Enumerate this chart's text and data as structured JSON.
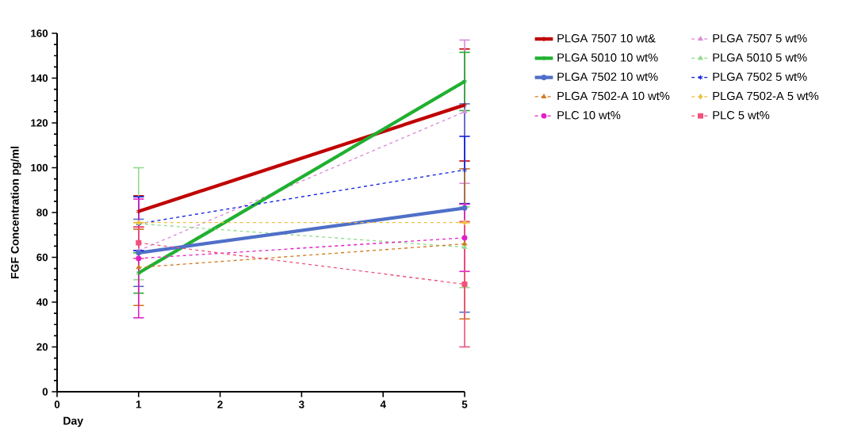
{
  "chart_data": {
    "type": "line",
    "xlabel": "Day",
    "ylabel": "FGF Concentration pg/ml",
    "xlim": [
      0,
      5
    ],
    "xticks": [
      0,
      1,
      2,
      3,
      4,
      5
    ],
    "ylim": [
      0,
      160
    ],
    "yticks": [
      0,
      20,
      40,
      60,
      80,
      100,
      120,
      140,
      160
    ],
    "grid": false,
    "legend": "top right",
    "x": [
      1,
      5
    ],
    "series": [
      {
        "name": "PLGA 7507 10 wt&",
        "color": "#c00000",
        "values": [
          80.5,
          128
        ],
        "errors": [
          7,
          25
        ],
        "marker": "cross",
        "line_style": "solid"
      },
      {
        "name": "PLGA 7507 5 wt%",
        "color": "#da8ad8",
        "values": [
          63,
          125
        ],
        "errors": [
          null,
          32
        ],
        "marker": "triangle",
        "line_style": "dashed"
      },
      {
        "name": "PLGA 5010 10 wt%",
        "color": "#20b030",
        "values": [
          53,
          138.5
        ],
        "errors": [
          9,
          13
        ],
        "marker": "cross",
        "line_style": "solid"
      },
      {
        "name": "PLGA 5010 5 wt%",
        "color": "#90dc8a",
        "values": [
          75,
          64.5
        ],
        "errors": [
          25,
          18
        ],
        "marker": "triangle",
        "line_style": "dashed"
      },
      {
        "name": "PLGA 7502 10 wt%",
        "color": "#4f6fc8",
        "values": [
          62,
          82
        ],
        "errors": [
          15,
          46.5
        ],
        "marker": "circle",
        "line_style": "solid"
      },
      {
        "name": "PLGA 7502 5 wt%",
        "color": "#1020e0",
        "values": [
          75,
          99
        ],
        "errors": [
          12,
          15
        ],
        "marker": "cross",
        "line_style": "dashed"
      },
      {
        "name": "PLGA 7502-A 10 wt%",
        "color": "#d07a1e",
        "values": [
          55.5,
          66
        ],
        "errors": [
          17,
          33.5
        ],
        "marker": "triangle",
        "line_style": "dashed"
      },
      {
        "name": "PLGA 7502-A 5 wt%",
        "color": "#f0c040",
        "values": [
          75.5,
          75.5
        ],
        "errors": [
          null,
          null
        ],
        "marker": "diamond",
        "line_style": "dashed"
      },
      {
        "name": "PLC 10 wt%",
        "color": "#e020c8",
        "values": [
          59.5,
          68.7
        ],
        "errors": [
          26.5,
          15
        ],
        "marker": "circle",
        "line_style": "dashed"
      },
      {
        "name": "PLC 5 wt%",
        "color": "#f0507a",
        "values": [
          66.5,
          48
        ],
        "errors": [
          7,
          28
        ],
        "marker": "square",
        "line_style": "dashed"
      }
    ]
  }
}
